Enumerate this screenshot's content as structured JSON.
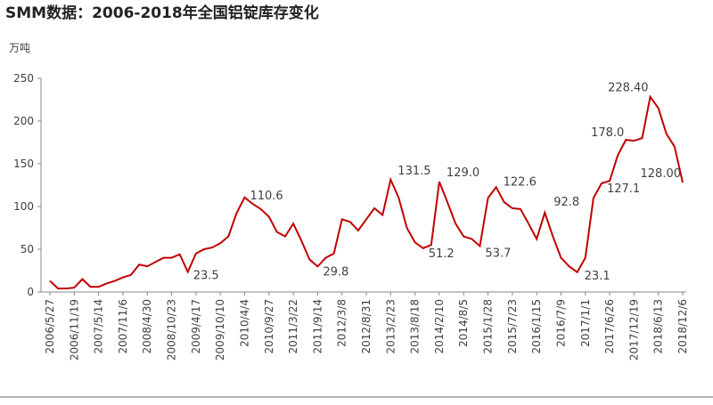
{
  "chart_data": {
    "type": "line",
    "title": "SMM数据：2006-2018年全国铝锭库存变化",
    "y_unit": "万吨",
    "categories": [
      "2006/5/27",
      null,
      null,
      "2006/11/19",
      null,
      null,
      "2007/5/14",
      null,
      null,
      "2007/11/6",
      null,
      null,
      "2008/4/30",
      null,
      null,
      "2008/10/23",
      null,
      null,
      "2009/4/17",
      null,
      null,
      "2009/10/10",
      null,
      null,
      "2010/4/4",
      null,
      null,
      "2010/9/27",
      null,
      null,
      "2011/3/22",
      null,
      null,
      "2011/9/14",
      null,
      null,
      "2012/3/8",
      null,
      null,
      "2012/8/31",
      null,
      null,
      "2013/2/23",
      null,
      null,
      "2013/8/18",
      null,
      null,
      "2014/2/10",
      null,
      null,
      "2014/8/5",
      null,
      null,
      "2015/1/28",
      null,
      null,
      "2015/7/23",
      null,
      null,
      "2016/1/15",
      null,
      null,
      "2016/7/9",
      null,
      null,
      "2017/1/1",
      null,
      null,
      "2017/6/26",
      null,
      null,
      "2017/12/19",
      null,
      null,
      "2018/6/13",
      null,
      null,
      "2018/12/6"
    ],
    "series": [
      {
        "name": "全国铝锭库存",
        "color": "#c00000",
        "values": [
          13,
          4,
          4,
          5,
          15,
          6,
          6,
          10,
          13,
          17,
          20,
          32,
          30,
          35,
          40,
          40,
          44,
          23.5,
          45,
          50,
          52,
          57,
          65,
          92,
          110.6,
          103,
          97,
          88,
          70,
          65,
          80,
          60,
          38,
          29.8,
          40,
          45,
          85,
          82,
          72,
          85,
          98,
          90,
          131.5,
          110,
          75,
          58,
          51.2,
          55,
          129.0,
          105,
          80,
          65,
          62,
          53.7,
          110,
          122.6,
          105,
          98,
          97,
          80,
          62,
          92.8,
          65,
          40,
          30,
          23.1,
          40,
          110,
          127.1,
          130,
          160,
          178.0,
          177,
          180,
          228.4,
          215,
          185,
          170,
          128.0
        ],
        "value_labels": [
          null,
          null,
          null,
          null,
          null,
          null,
          null,
          null,
          null,
          null,
          null,
          null,
          null,
          null,
          null,
          null,
          null,
          "23.5",
          null,
          null,
          null,
          null,
          null,
          null,
          "110.6",
          null,
          null,
          null,
          null,
          null,
          null,
          null,
          null,
          "29.8",
          null,
          null,
          null,
          null,
          null,
          null,
          null,
          null,
          "131.5",
          null,
          null,
          null,
          "51.2",
          null,
          "129.0",
          null,
          null,
          null,
          null,
          "53.7",
          null,
          "122.6",
          null,
          null,
          null,
          null,
          null,
          "92.8",
          null,
          null,
          null,
          "23.1",
          null,
          null,
          "127.1",
          null,
          null,
          "178.0",
          null,
          null,
          "228.40",
          null,
          null,
          null,
          "128.00"
        ]
      }
    ],
    "ylim": [
      0,
      250
    ],
    "yticks": [
      0,
      50,
      100,
      150,
      200,
      250
    ],
    "grid": false
  }
}
